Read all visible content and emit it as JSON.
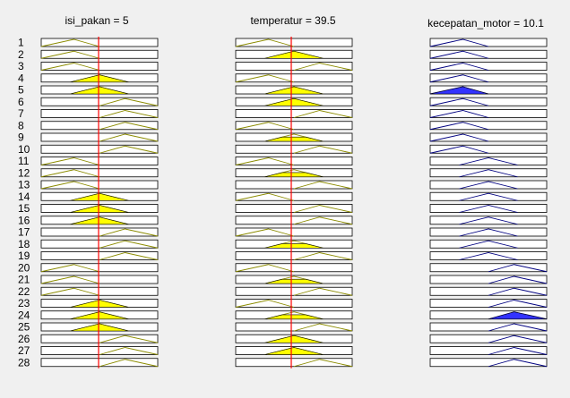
{
  "columns": [
    {
      "id": "isi_pakan",
      "title": "isi_pakan = 5",
      "role": "input",
      "fill_color": "#ffff00",
      "line_color": "#8c8c00",
      "cursor_value": 5,
      "cursor_color": "#ff0000",
      "mfs": [
        {
          "shape": "left",
          "fill": 0.0
        },
        {
          "shape": "left",
          "fill": 0.0
        },
        {
          "shape": "left",
          "fill": 0.0
        },
        {
          "shape": "mid",
          "fill": 1.0
        },
        {
          "shape": "mid",
          "fill": 1.0
        },
        {
          "shape": "right",
          "fill": 0.0
        },
        {
          "shape": "right",
          "fill": 0.0
        },
        {
          "shape": "right",
          "fill": 0.0
        },
        {
          "shape": "right",
          "fill": 0.0
        },
        {
          "shape": "right",
          "fill": 0.0
        },
        {
          "shape": "left",
          "fill": 0.0
        },
        {
          "shape": "left",
          "fill": 0.0
        },
        {
          "shape": "left",
          "fill": 0.0
        },
        {
          "shape": "mid",
          "fill": 1.0
        },
        {
          "shape": "mid",
          "fill": 1.0
        },
        {
          "shape": "mid",
          "fill": 1.0
        },
        {
          "shape": "right",
          "fill": 0.0
        },
        {
          "shape": "right",
          "fill": 0.0
        },
        {
          "shape": "right",
          "fill": 0.0
        },
        {
          "shape": "left",
          "fill": 0.0
        },
        {
          "shape": "left",
          "fill": 0.0
        },
        {
          "shape": "left",
          "fill": 0.0
        },
        {
          "shape": "mid",
          "fill": 1.0
        },
        {
          "shape": "mid",
          "fill": 1.0
        },
        {
          "shape": "mid",
          "fill": 1.0
        },
        {
          "shape": "right",
          "fill": 0.0
        },
        {
          "shape": "right",
          "fill": 0.0
        },
        {
          "shape": "right",
          "fill": 0.0
        }
      ]
    },
    {
      "id": "temperatur",
      "title": "temperatur = 39.5",
      "role": "input",
      "fill_color": "#ffff00",
      "line_color": "#8c8c00",
      "cursor_value": 39.5,
      "cursor_color": "#ff0000",
      "mfs": [
        {
          "shape": "left",
          "fill": 0.0
        },
        {
          "shape": "mid",
          "fill": 1.0
        },
        {
          "shape": "right",
          "fill": 0.0
        },
        {
          "shape": "left",
          "fill": 0.0
        },
        {
          "shape": "mid",
          "fill": 1.0
        },
        {
          "shape": "mid",
          "fill": 1.0
        },
        {
          "shape": "right",
          "fill": 0.0
        },
        {
          "shape": "left",
          "fill": 0.0
        },
        {
          "shape": "mid",
          "fill": 0.6
        },
        {
          "shape": "right",
          "fill": 0.0
        },
        {
          "shape": "left",
          "fill": 0.0
        },
        {
          "shape": "mid",
          "fill": 0.6
        },
        {
          "shape": "right",
          "fill": 0.0
        },
        {
          "shape": "left",
          "fill": 0.0
        },
        {
          "shape": "right",
          "fill": 0.0
        },
        {
          "shape": "right",
          "fill": 0.0
        },
        {
          "shape": "left",
          "fill": 0.0
        },
        {
          "shape": "mid",
          "fill": 0.6
        },
        {
          "shape": "right",
          "fill": 0.0
        },
        {
          "shape": "left",
          "fill": 0.0
        },
        {
          "shape": "mid",
          "fill": 0.6
        },
        {
          "shape": "right",
          "fill": 0.0
        },
        {
          "shape": "left",
          "fill": 0.0
        },
        {
          "shape": "mid",
          "fill": 0.6
        },
        {
          "shape": "right",
          "fill": 0.0
        },
        {
          "shape": "mid",
          "fill": 1.0
        },
        {
          "shape": "mid",
          "fill": 1.0
        },
        {
          "shape": "right",
          "fill": 0.0
        }
      ]
    },
    {
      "id": "kecepatan_motor",
      "title": "kecepatan_motor = 10.1",
      "role": "output",
      "fill_color": "#3333ff",
      "line_color": "#000080",
      "mfs": [
        {
          "shape": "left",
          "fill": 0.0
        },
        {
          "shape": "left",
          "fill": 0.0
        },
        {
          "shape": "left",
          "fill": 0.0
        },
        {
          "shape": "left",
          "fill": 0.0
        },
        {
          "shape": "left",
          "fill": 1.0
        },
        {
          "shape": "left",
          "fill": 0.0
        },
        {
          "shape": "left",
          "fill": 0.0
        },
        {
          "shape": "left",
          "fill": 0.0
        },
        {
          "shape": "left",
          "fill": 0.0
        },
        {
          "shape": "left",
          "fill": 0.0
        },
        {
          "shape": "mid",
          "fill": 0.0
        },
        {
          "shape": "mid",
          "fill": 0.0
        },
        {
          "shape": "mid",
          "fill": 0.0
        },
        {
          "shape": "mid",
          "fill": 0.0
        },
        {
          "shape": "mid",
          "fill": 0.0
        },
        {
          "shape": "mid",
          "fill": 0.0
        },
        {
          "shape": "mid",
          "fill": 0.0
        },
        {
          "shape": "mid",
          "fill": 0.0
        },
        {
          "shape": "mid",
          "fill": 0.0
        },
        {
          "shape": "right",
          "fill": 0.0
        },
        {
          "shape": "right",
          "fill": 0.0
        },
        {
          "shape": "right",
          "fill": 0.0
        },
        {
          "shape": "right",
          "fill": 0.0
        },
        {
          "shape": "right",
          "fill": 1.0
        },
        {
          "shape": "right",
          "fill": 0.0
        },
        {
          "shape": "right",
          "fill": 0.0
        },
        {
          "shape": "right",
          "fill": 0.0
        },
        {
          "shape": "right",
          "fill": 0.0
        }
      ]
    }
  ],
  "rules": [
    "1",
    "2",
    "3",
    "4",
    "5",
    "6",
    "7",
    "8",
    "9",
    "10",
    "11",
    "12",
    "13",
    "14",
    "15",
    "16",
    "17",
    "18",
    "19",
    "20",
    "21",
    "22",
    "23",
    "24",
    "25",
    "26",
    "27",
    "28"
  ],
  "background_color": "#f0f0f0",
  "panel_color": "#ffffff"
}
